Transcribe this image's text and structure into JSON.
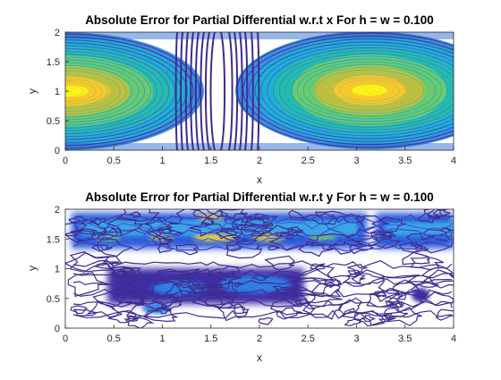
{
  "chart_data": [
    {
      "type": "contour",
      "title": "Absolute Error for Partial Differential w.r.t x For h = w = 0.100",
      "xlabel": "x",
      "ylabel": "y",
      "xlim": [
        0,
        4
      ],
      "ylim": [
        0,
        2
      ],
      "xticks": [
        "0",
        "0.5",
        "1",
        "1.5",
        "2",
        "2.5",
        "3",
        "3.5",
        "4"
      ],
      "yticks": [
        "0",
        "0.5",
        "1",
        "1.5",
        "2"
      ],
      "colormap": "parula",
      "grid": false,
      "legend": "none"
    },
    {
      "type": "contour",
      "title": "Absolute Error for Partial Differential w.r.t y For h = w = 0.100",
      "xlabel": "x",
      "ylabel": "y",
      "xlim": [
        0,
        4
      ],
      "ylim": [
        0,
        2
      ],
      "xticks": [
        "0",
        "0.5",
        "1",
        "1.5",
        "2",
        "2.5",
        "3",
        "3.5",
        "4"
      ],
      "yticks": [
        "0",
        "0.5",
        "1",
        "1.5",
        "2"
      ],
      "colormap": "parula",
      "grid": false,
      "legend": "none"
    }
  ]
}
